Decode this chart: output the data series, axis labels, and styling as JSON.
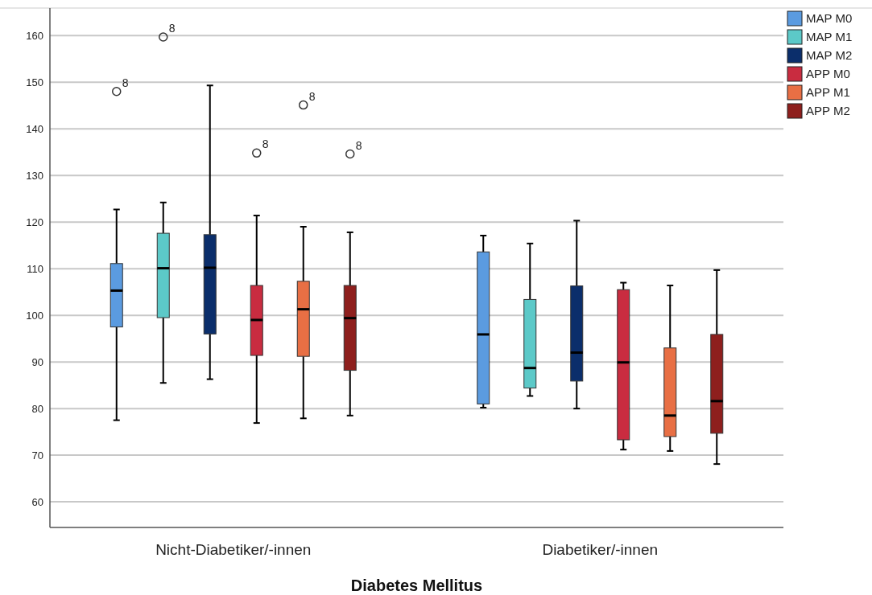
{
  "chart_data": {
    "type": "box",
    "xlabel": "Diabetes Mellitus",
    "categories": [
      "Nicht-Diabetiker/-innen",
      "Diabetiker/-innen"
    ],
    "ylim": [
      54.5,
      165.9
    ],
    "yticks": [
      60,
      70,
      80,
      90,
      100,
      110,
      120,
      130,
      140,
      150,
      160
    ],
    "grid": "y",
    "legend": "top right",
    "series": [
      {
        "name": "MAP M0",
        "color": "#5b9be0",
        "boxes": [
          {
            "low": 77.5,
            "q1": 97.5,
            "median": 105.3,
            "q3": 111.1,
            "high": 122.7,
            "outliers": [
              148.0
            ]
          },
          {
            "low": 80.2,
            "q1": 81.0,
            "median": 95.9,
            "q3": 113.6,
            "high": 117.1
          }
        ]
      },
      {
        "name": "MAP M1",
        "color": "#5cc9c8",
        "boxes": [
          {
            "low": 85.5,
            "q1": 99.5,
            "median": 110.1,
            "q3": 117.6,
            "high": 124.2,
            "outliers": [
              159.7
            ]
          },
          {
            "low": 82.7,
            "q1": 84.4,
            "median": 88.7,
            "q3": 103.4,
            "high": 115.4
          }
        ]
      },
      {
        "name": "MAP M2",
        "color": "#0b2e6b",
        "boxes": [
          {
            "low": 86.3,
            "q1": 96.0,
            "median": 110.2,
            "q3": 117.3,
            "high": 149.3
          },
          {
            "low": 80.0,
            "q1": 85.9,
            "median": 92.0,
            "q3": 106.3,
            "high": 120.3
          }
        ]
      },
      {
        "name": "APP M0",
        "color": "#c92c40",
        "boxes": [
          {
            "low": 76.9,
            "q1": 91.4,
            "median": 99.0,
            "q3": 106.4,
            "high": 121.4,
            "outliers": [
              134.8
            ]
          },
          {
            "low": 71.2,
            "q1": 73.3,
            "median": 89.9,
            "q3": 105.5,
            "high": 107.0
          }
        ]
      },
      {
        "name": "APP M1",
        "color": "#e86f44",
        "boxes": [
          {
            "low": 77.9,
            "q1": 91.2,
            "median": 101.3,
            "q3": 107.3,
            "high": 119.0,
            "outliers": [
              145.1
            ]
          },
          {
            "low": 70.9,
            "q1": 74.0,
            "median": 78.5,
            "q3": 93.0,
            "high": 106.4
          }
        ]
      },
      {
        "name": "APP M2",
        "color": "#8e1f1d",
        "boxes": [
          {
            "low": 78.5,
            "q1": 88.2,
            "median": 99.4,
            "q3": 106.4,
            "high": 117.8,
            "outliers": [
              134.6
            ]
          },
          {
            "low": 68.1,
            "q1": 74.7,
            "median": 81.6,
            "q3": 95.9,
            "high": 109.7
          }
        ]
      }
    ],
    "annotations": [
      "8",
      "8",
      "8",
      "8",
      "8"
    ]
  }
}
